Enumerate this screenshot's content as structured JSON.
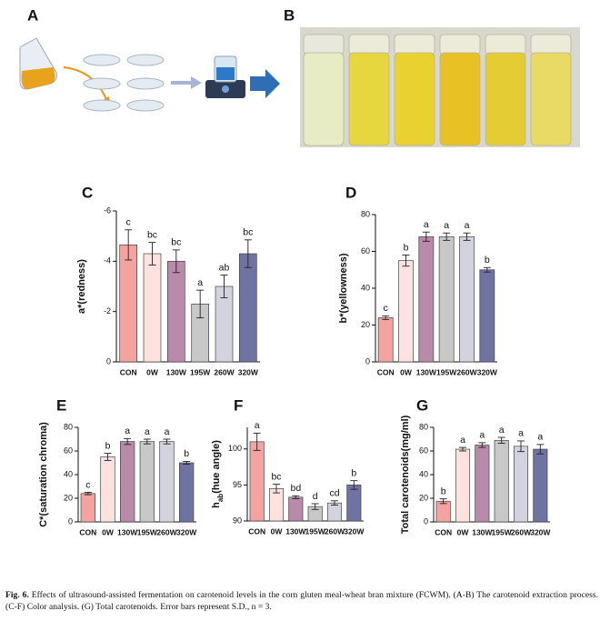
{
  "panels": {
    "a": "A",
    "b": "B"
  },
  "caption": {
    "label": "Fig. 6.",
    "text": "Effects of ultrasound-assisted fermentation on carotenoid levels in the corn gluten meal-wheat bran mixture (FCWM). (A-B) The carotenoid extraction process. (C-F) Color analysis. (G) Total carotenoids. Error bars represent S.D., n = 3."
  },
  "chart_data": [
    {
      "type": "bar",
      "panel": "C",
      "ylabel_parts": [
        "a*(redness)"
      ],
      "categories": [
        "CON",
        "0W",
        "130W",
        "195W",
        "260W",
        "320W"
      ],
      "values": [
        -4.65,
        -4.3,
        -4.0,
        -2.3,
        -3.0,
        -4.3
      ],
      "errors": [
        0.6,
        0.45,
        0.45,
        0.55,
        0.45,
        0.55
      ],
      "annotations": [
        "c",
        "bc",
        "bc",
        "a",
        "ab",
        "bc"
      ],
      "colors": [
        "#f4a3a0",
        "#fde2e0",
        "#b98aa9",
        "#c8c8c8",
        "#d3d3df",
        "#6e73a2"
      ],
      "ylim": [
        0,
        -6
      ],
      "yticks": [
        0,
        -2,
        -4,
        -6
      ]
    },
    {
      "type": "bar",
      "panel": "D",
      "ylabel_parts": [
        "b*(yellowness)"
      ],
      "categories": [
        "CON",
        "0W",
        "130W",
        "195W",
        "260W",
        "320W"
      ],
      "values": [
        24,
        55,
        68,
        68,
        68,
        50
      ],
      "errors": [
        1,
        3,
        2.5,
        2,
        2,
        1.2
      ],
      "annotations": [
        "c",
        "b",
        "a",
        "a",
        "a",
        "b"
      ],
      "colors": [
        "#f4a3a0",
        "#fde2e0",
        "#b98aa9",
        "#c8c8c8",
        "#d3d3df",
        "#6e73a2"
      ],
      "ylim": [
        0,
        80
      ],
      "yticks": [
        0,
        20,
        40,
        60,
        80
      ]
    },
    {
      "type": "bar",
      "panel": "E",
      "ylabel_parts": [
        "C*(saturation chroma)"
      ],
      "categories": [
        "CON",
        "0W",
        "130W",
        "195W",
        "260W",
        "320W"
      ],
      "values": [
        24,
        55,
        68,
        68,
        68,
        50
      ],
      "errors": [
        1,
        3,
        2.5,
        2,
        2,
        1.2
      ],
      "annotations": [
        "c",
        "b",
        "a",
        "a",
        "a",
        "b"
      ],
      "colors": [
        "#f4a3a0",
        "#fde2e0",
        "#b98aa9",
        "#c8c8c8",
        "#d3d3df",
        "#6e73a2"
      ],
      "ylim": [
        0,
        80
      ],
      "yticks": [
        0,
        20,
        40,
        60,
        80
      ]
    },
    {
      "type": "bar",
      "panel": "F",
      "ylabel_parts": [
        "h",
        "ab",
        "(hue angle)"
      ],
      "categories": [
        "CON",
        "0W",
        "130W",
        "195W",
        "260W",
        "320W"
      ],
      "values": [
        101,
        94.5,
        93.3,
        92,
        92.5,
        95
      ],
      "errors": [
        1.2,
        0.6,
        0.2,
        0.4,
        0.3,
        0.6
      ],
      "annotations": [
        "a",
        "bc",
        "bd",
        "d",
        "cd",
        "b"
      ],
      "colors": [
        "#f4a3a0",
        "#fde2e0",
        "#b98aa9",
        "#c8c8c8",
        "#d3d3df",
        "#6e73a2"
      ],
      "ylim": [
        90,
        103
      ],
      "yticks": [
        90,
        95,
        100
      ]
    },
    {
      "type": "bar",
      "panel": "G",
      "ylabel_parts": [
        "Total carotenoids(mg/ml)"
      ],
      "categories": [
        "CON",
        "0W",
        "130W",
        "195W",
        "260W",
        "320W"
      ],
      "values": [
        17.5,
        61.5,
        65,
        69,
        64,
        61.5
      ],
      "errors": [
        2,
        1.5,
        2,
        2.5,
        4.5,
        4
      ],
      "annotations": [
        "b",
        "a",
        "a",
        "a",
        "a",
        "a"
      ],
      "colors": [
        "#f4a3a0",
        "#fde2e0",
        "#b98aa9",
        "#c8c8c8",
        "#d3d3df",
        "#6e73a2"
      ],
      "ylim": [
        0,
        80
      ],
      "yticks": [
        0,
        20,
        40,
        60,
        80
      ]
    }
  ]
}
